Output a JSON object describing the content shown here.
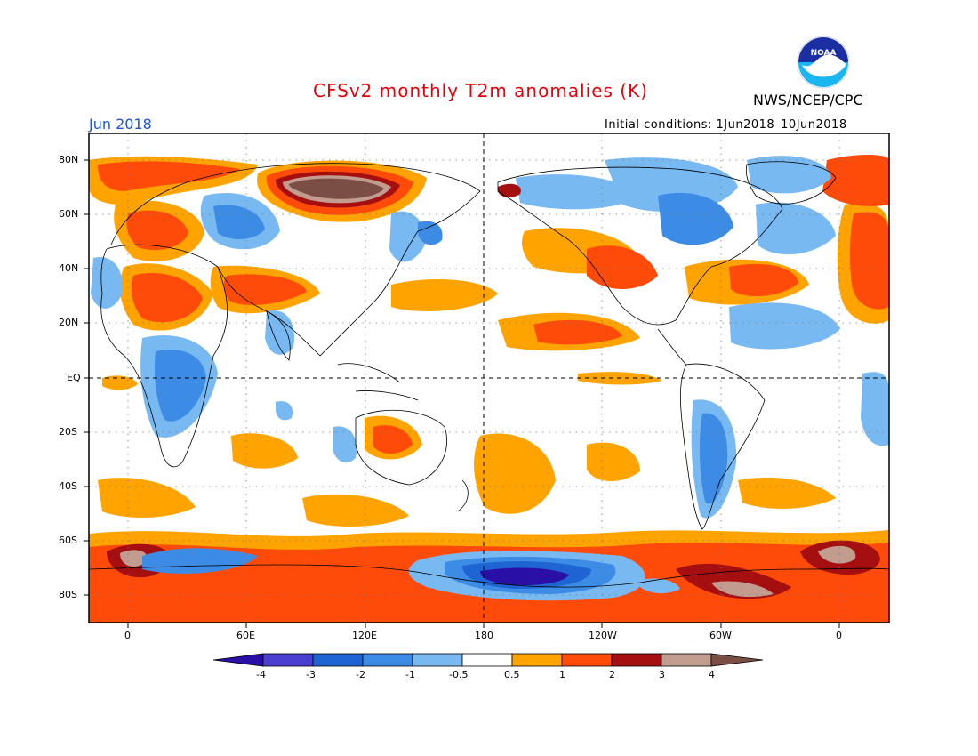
{
  "header": {
    "title": "CFSv2 monthly T2m anomalies (K)",
    "agency": "NWS/NCEP/CPC",
    "logo_text": "NOAA",
    "month": "Jun 2018",
    "initial_conditions": "Initial conditions: 1Jun2018–10Jun2018"
  },
  "map": {
    "lat_labels": [
      "80N",
      "60N",
      "40N",
      "20N",
      "EQ",
      "20S",
      "40S",
      "60S",
      "80S"
    ],
    "lon_labels": [
      "0",
      "60E",
      "120E",
      "180",
      "120W",
      "60W",
      "0"
    ]
  },
  "colorbar": {
    "levels": [
      "-4",
      "-3",
      "-2",
      "-1",
      "-0.5",
      "0.5",
      "1",
      "2",
      "3",
      "4"
    ],
    "colors": [
      "#2a0fa6",
      "#4a3fd0",
      "#1e64d2",
      "#3c8ce6",
      "#78b9f2",
      "#ffffff",
      "#ffa300",
      "#ff4b0a",
      "#a50f0f",
      "#c39c90",
      "#7a4e44"
    ]
  },
  "colors": {
    "title": "#e8000b",
    "month": "#1d55d6",
    "ocean_blue_logo": "#1b5cc9"
  }
}
